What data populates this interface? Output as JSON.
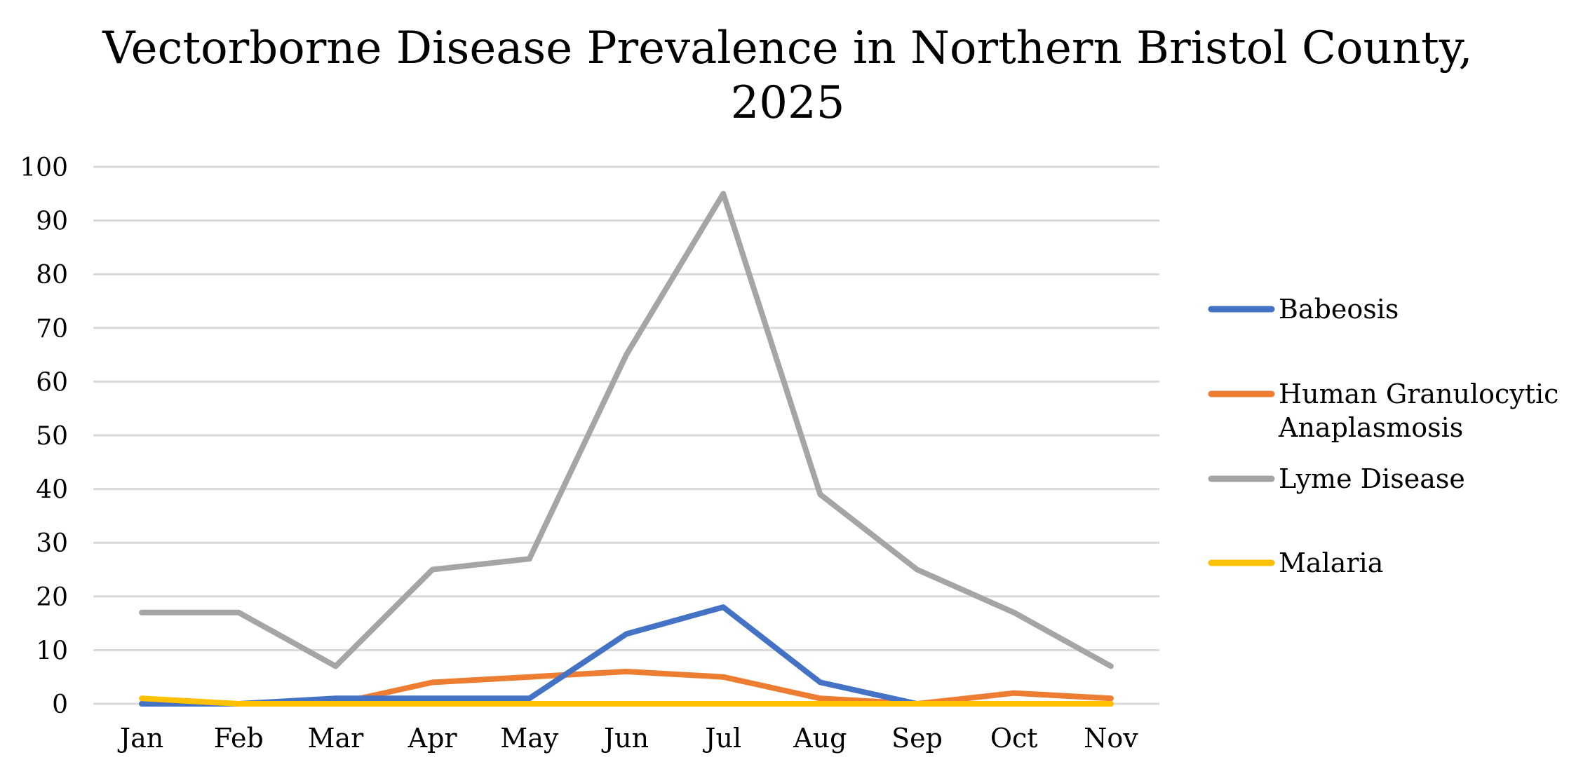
{
  "chart_data": {
    "type": "line",
    "title_lines": [
      "Vectorborne Disease Prevalence in Northern Bristol County,",
      "2025"
    ],
    "categories": [
      "Jan",
      "Feb",
      "Mar",
      "Apr",
      "May",
      "Jun",
      "Jul",
      "Aug",
      "Sep",
      "Oct",
      "Nov"
    ],
    "ylim": [
      0,
      100
    ],
    "yticks": [
      0,
      10,
      20,
      30,
      40,
      50,
      60,
      70,
      80,
      90,
      100
    ],
    "grid": true,
    "legend_position": "right",
    "series": [
      {
        "name": "Babeosis",
        "legend_lines": [
          "Babeosis"
        ],
        "color": "#4472C4",
        "values": [
          0,
          0,
          1,
          1,
          1,
          13,
          18,
          4,
          0,
          0,
          0
        ]
      },
      {
        "name": "Human Granulocytic Anaplasmosis",
        "legend_lines": [
          "Human Granulocytic",
          "Anaplasmosis"
        ],
        "color": "#ED7D31",
        "values": [
          0,
          0,
          0,
          4,
          5,
          6,
          5,
          1,
          0,
          2,
          1
        ]
      },
      {
        "name": "Lyme Disease",
        "legend_lines": [
          "Lyme Disease"
        ],
        "color": "#A5A5A5",
        "values": [
          17,
          17,
          7,
          25,
          27,
          65,
          95,
          39,
          25,
          17,
          7
        ]
      },
      {
        "name": "Malaria",
        "legend_lines": [
          "Malaria"
        ],
        "color": "#FFC000",
        "values": [
          1,
          0,
          0,
          0,
          0,
          0,
          0,
          0,
          0,
          0,
          0
        ]
      }
    ]
  }
}
